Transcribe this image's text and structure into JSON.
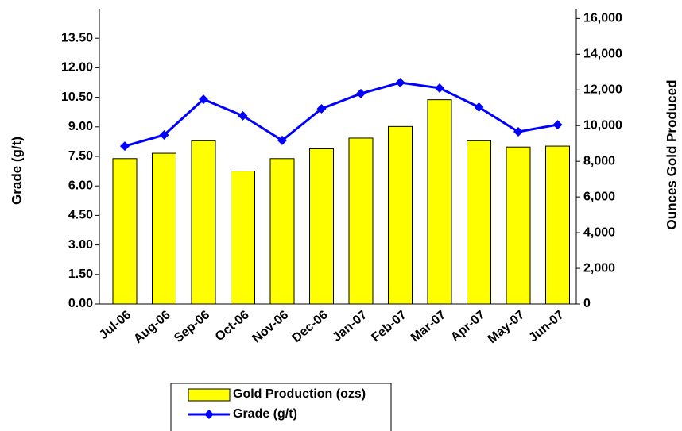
{
  "chart_data": {
    "type": "bar_line",
    "categories": [
      "Jul-06",
      "Aug-06",
      "Sep-06",
      "Oct-06",
      "Nov-06",
      "Dec-06",
      "Jan-07",
      "Feb-07",
      "Mar-07",
      "Apr-07",
      "May-07",
      "Jun-07"
    ],
    "ylabel": "Grade (g/t)",
    "y2label": "Ounces Gold Produced",
    "ylim": [
      0,
      15
    ],
    "yticks": [
      {
        "value": 0,
        "label": "0.00"
      },
      {
        "value": 1.5,
        "label": "1.50"
      },
      {
        "value": 3,
        "label": "3.00"
      },
      {
        "value": 4.5,
        "label": "4.50"
      },
      {
        "value": 6,
        "label": "6.00"
      },
      {
        "value": 7.5,
        "label": "7.50"
      },
      {
        "value": 9,
        "label": "9.00"
      },
      {
        "value": 10.5,
        "label": "10.50"
      },
      {
        "value": 12,
        "label": "12.00"
      },
      {
        "value": 13.5,
        "label": "13.50"
      }
    ],
    "y2lim": [
      0,
      16550
    ],
    "y2ticks": [
      0,
      {
        "value": 2000,
        "label": "2,000"
      },
      {
        "value": 4000,
        "label": "4,000"
      },
      {
        "value": 6000,
        "label": "6,000"
      },
      {
        "value": 8000,
        "label": "8,000"
      },
      {
        "value": 10000,
        "label": "10,000"
      },
      {
        "value": 12000,
        "label": "12,000"
      },
      {
        "value": 14000,
        "label": "14,000"
      },
      {
        "value": 16000,
        "label": "16,000"
      }
    ],
    "series": [
      {
        "name": "Gold Production (ozs)",
        "kind": "bar",
        "axis": "y2",
        "color": "#ffff00",
        "values": [
          8150,
          8450,
          9150,
          7450,
          8150,
          8700,
          9300,
          9950,
          11450,
          9150,
          8800,
          8850
        ]
      },
      {
        "name": "Grade (g/t)",
        "kind": "line",
        "axis": "y",
        "color": "#0000ff",
        "values": [
          8.02,
          8.59,
          10.4,
          9.56,
          8.31,
          9.92,
          10.69,
          11.25,
          10.97,
          10.0,
          8.75,
          9.11
        ]
      }
    ]
  }
}
